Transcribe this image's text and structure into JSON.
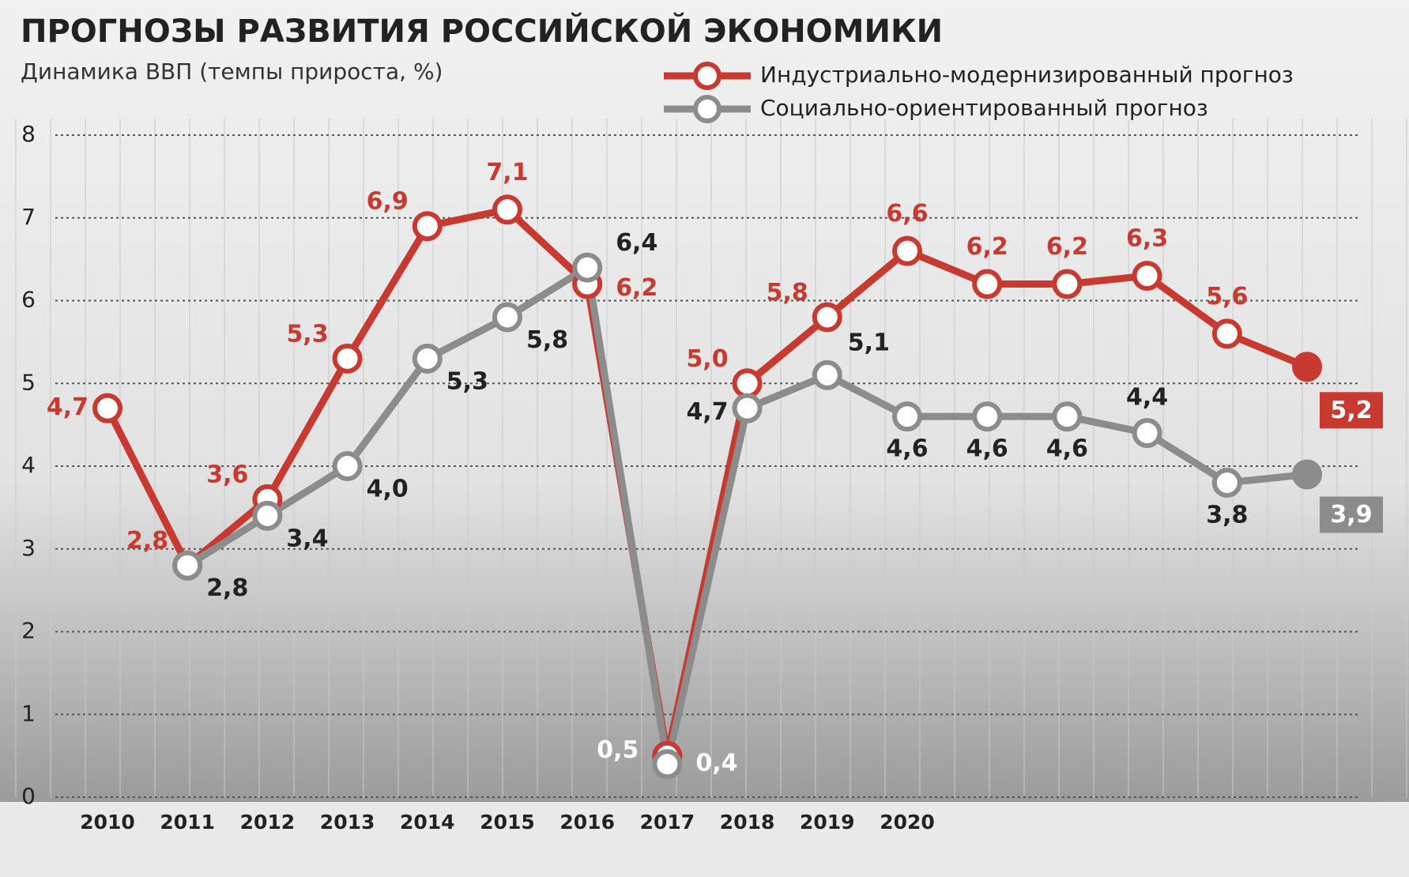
{
  "chart_data": {
    "type": "line",
    "title": "ПРОГНОЗЫ РАЗВИТИЯ РОССИЙСКОЙ ЭКОНОМИКИ",
    "subtitle": "Динамика ВВП (темпы прироста, %)",
    "categories": [
      "2010",
      "2011",
      "2012",
      "2013",
      "2014",
      "2015",
      "2016",
      "2017",
      "2018",
      "2019",
      "2020",
      null,
      null,
      null,
      null,
      null
    ],
    "series": [
      {
        "name": "Индустриально-модернизированный прогноз",
        "color": "#c8392f",
        "values": [
          4.7,
          2.8,
          3.6,
          5.3,
          6.9,
          7.1,
          6.2,
          0.5,
          5.0,
          5.8,
          6.6,
          6.2,
          6.2,
          6.3,
          5.6,
          5.2
        ],
        "value_labels": [
          "4,7",
          "2,8",
          "3,6",
          "5,3",
          "6,9",
          "7,1",
          "6,2",
          "0,5",
          "5,0",
          "5,8",
          "6,6",
          "6,2",
          "6,2",
          "6,3",
          "5,6",
          "5,2"
        ]
      },
      {
        "name": "Социально-ориентированный прогноз",
        "color": "#8c8c8c",
        "values": [
          null,
          2.8,
          3.4,
          4.0,
          5.3,
          5.8,
          6.4,
          0.4,
          4.7,
          5.1,
          4.6,
          4.6,
          4.6,
          4.4,
          3.8,
          3.9
        ],
        "value_labels": [
          null,
          "2,8",
          "3,4",
          "4,0",
          "5,3",
          "5,8",
          "6,4",
          "0,4",
          "4,7",
          "5,1",
          "4,6",
          "4,6",
          "4,6",
          "4,4",
          "3,8",
          "3,9"
        ]
      }
    ],
    "ylim": [
      0,
      8
    ],
    "yticks": [
      0,
      1,
      2,
      3,
      4,
      5,
      6,
      7,
      8
    ],
    "grid": true,
    "legend": "top-right"
  }
}
